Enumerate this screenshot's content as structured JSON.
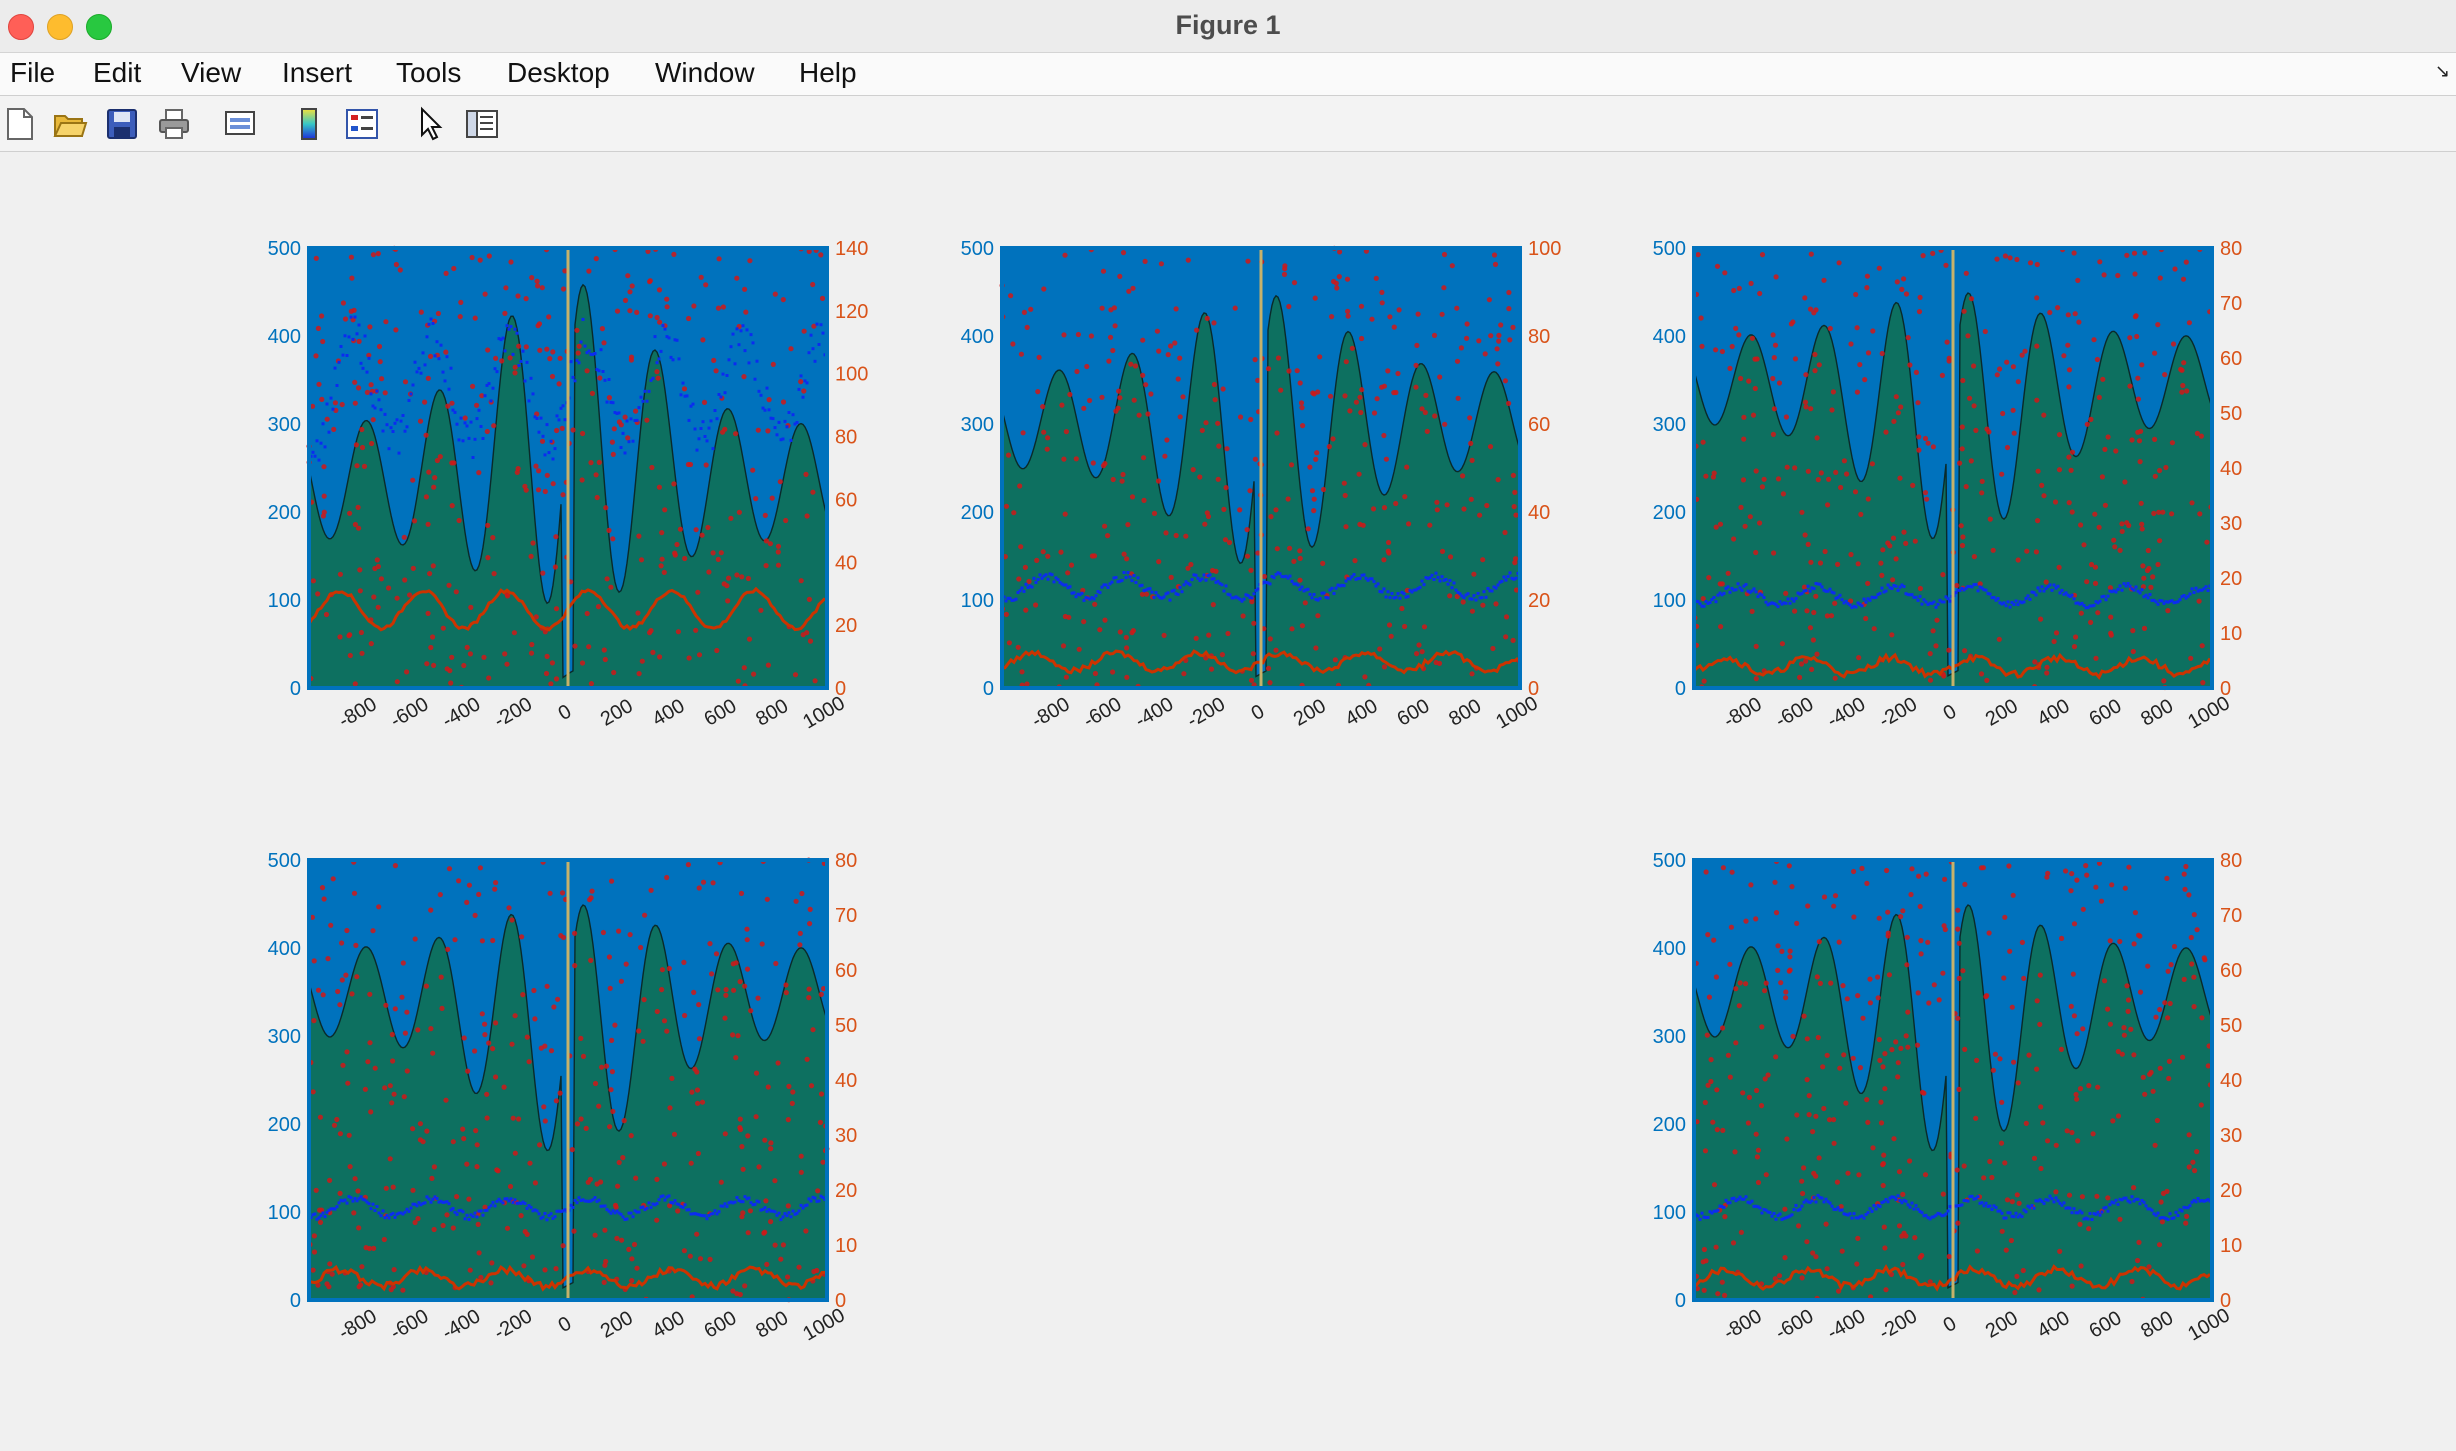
{
  "window": {
    "title": "Figure 1"
  },
  "menu": [
    "File",
    "Edit",
    "View",
    "Insert",
    "Tools",
    "Desktop",
    "Window",
    "Help"
  ],
  "toolbar": {
    "tools": [
      "new-figure-icon",
      "open-file-icon",
      "save-icon",
      "print-icon",
      "print-preview-icon",
      "colorbar-icon",
      "legend-icon",
      "pointer-icon",
      "property-editor-icon"
    ]
  },
  "colors": {
    "axes_bg": "#0072bd",
    "left_axis": "#0072bd",
    "right_axis": "#d95319",
    "fill": "#0d7060",
    "blue_markers": "#0b2cf0",
    "red_line": "#cc3300",
    "scatter": "#d01818",
    "vline": "#c7b26a"
  },
  "chart_data": [
    {
      "type": "line",
      "subplot": "top-left",
      "xlim": [
        -1000,
        1000
      ],
      "ylim_left": [
        0,
        500
      ],
      "ylim_right": [
        0,
        140
      ],
      "x_ticks": [
        "-800",
        "-600",
        "-400",
        "-200",
        "0",
        "200",
        "400",
        "600",
        "800",
        "1000"
      ],
      "y_ticks_left": [
        "0",
        "100",
        "200",
        "300",
        "400",
        "500"
      ],
      "y_ticks_right": [
        "0",
        "20",
        "40",
        "60",
        "80",
        "100",
        "120",
        "140"
      ],
      "blue_level": 340,
      "blue_amp": 60,
      "red_level": 25,
      "red_amp": 6,
      "peak_max": 470,
      "peak_base": 170
    },
    {
      "type": "line",
      "subplot": "top-middle",
      "xlim": [
        -1000,
        1000
      ],
      "ylim_left": [
        0,
        500
      ],
      "ylim_right": [
        0,
        100
      ],
      "x_ticks": [
        "-800",
        "-600",
        "-400",
        "-200",
        "0",
        "200",
        "400",
        "600",
        "800",
        "1000"
      ],
      "y_ticks_left": [
        "0",
        "100",
        "200",
        "300",
        "400",
        "500"
      ],
      "y_ticks_right": [
        "0",
        "20",
        "40",
        "60",
        "80",
        "100"
      ],
      "blue_level": 115,
      "blue_amp": 12,
      "red_level": 6,
      "red_amp": 2,
      "peak_max": 460,
      "peak_base": 250
    },
    {
      "type": "line",
      "subplot": "top-right",
      "xlim": [
        -1000,
        1000
      ],
      "ylim_left": [
        0,
        500
      ],
      "ylim_right": [
        0,
        80
      ],
      "x_ticks": [
        "-800",
        "-600",
        "-400",
        "-200",
        "0",
        "200",
        "400",
        "600",
        "800",
        "1000"
      ],
      "y_ticks_left": [
        "0",
        "100",
        "200",
        "300",
        "400",
        "500"
      ],
      "y_ticks_right": [
        "0",
        "10",
        "20",
        "30",
        "40",
        "50",
        "60",
        "70",
        "80"
      ],
      "blue_level": 105,
      "blue_amp": 10,
      "red_level": 4,
      "red_amp": 1.5,
      "peak_max": 465,
      "peak_base": 300
    },
    {
      "type": "line",
      "subplot": "bottom-left",
      "xlim": [
        -1000,
        1000
      ],
      "ylim_left": [
        0,
        500
      ],
      "ylim_right": [
        0,
        80
      ],
      "x_ticks": [
        "-800",
        "-600",
        "-400",
        "-200",
        "0",
        "200",
        "400",
        "600",
        "800",
        "1000"
      ],
      "y_ticks_left": [
        "0",
        "100",
        "200",
        "300",
        "400",
        "500"
      ],
      "y_ticks_right": [
        "0",
        "10",
        "20",
        "30",
        "40",
        "50",
        "60",
        "70",
        "80"
      ],
      "blue_level": 105,
      "blue_amp": 10,
      "red_level": 4,
      "red_amp": 1.5,
      "peak_max": 465,
      "peak_base": 300
    },
    {
      "type": "line",
      "subplot": "bottom-right",
      "xlim": [
        -1000,
        1000
      ],
      "ylim_left": [
        0,
        500
      ],
      "ylim_right": [
        0,
        80
      ],
      "x_ticks": [
        "-800",
        "-600",
        "-400",
        "-200",
        "0",
        "200",
        "400",
        "600",
        "800",
        "1000"
      ],
      "y_ticks_left": [
        "0",
        "100",
        "200",
        "300",
        "400",
        "500"
      ],
      "y_ticks_right": [
        "0",
        "10",
        "20",
        "30",
        "40",
        "50",
        "60",
        "70",
        "80"
      ],
      "blue_level": 105,
      "blue_amp": 10,
      "red_level": 4,
      "red_amp": 1.5,
      "peak_max": 465,
      "peak_base": 300
    }
  ]
}
